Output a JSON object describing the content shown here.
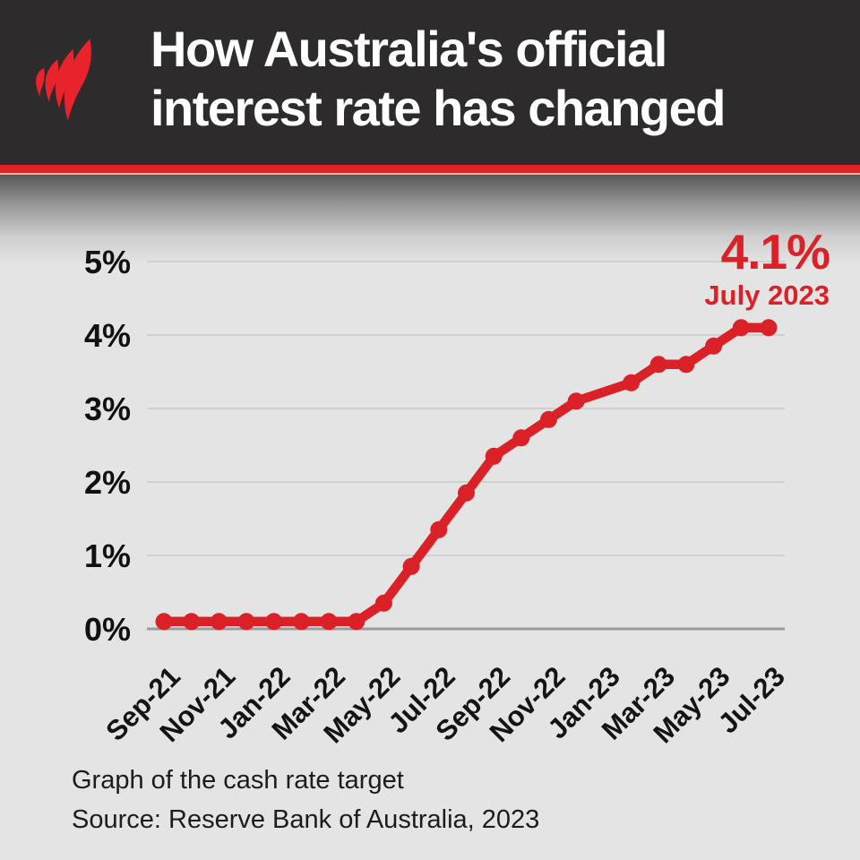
{
  "header": {
    "title_line1": "How Australia's official",
    "title_line2": "interest rate has changed",
    "logo": "sbs-flame-logo"
  },
  "annotation": {
    "value": "4.1%",
    "date": "July 2023"
  },
  "footer": {
    "line1": "Graph of the cash rate target",
    "line2": "Source: Reserve Bank of Australia, 2023"
  },
  "colors": {
    "brand_red": "#DB2128",
    "stripe_red": "#E02128",
    "header_bg": "#2D2B2C",
    "chart_bg": "#E5E4E4",
    "grid_line": "#D0D0D0",
    "axis_line": "#9B9B9B",
    "text_dark": "#111111"
  },
  "chart_data": {
    "type": "line",
    "series_name": "Cash rate target (%)",
    "x": [
      "Sep-21",
      "Oct-21",
      "Nov-21",
      "Dec-21",
      "Jan-22",
      "Feb-22",
      "Mar-22",
      "Apr-22",
      "May-22",
      "Jun-22",
      "Jul-22",
      "Aug-22",
      "Sep-22",
      "Oct-22",
      "Nov-22",
      "Dec-22",
      "Jan-23",
      "Feb-23",
      "Mar-23",
      "Apr-23",
      "May-23",
      "Jun-23",
      "Jul-23"
    ],
    "values": [
      0.1,
      0.1,
      0.1,
      0.1,
      0.1,
      0.1,
      0.1,
      0.1,
      0.35,
      0.85,
      1.35,
      1.85,
      2.35,
      2.6,
      2.85,
      3.1,
      null,
      3.35,
      3.6,
      3.6,
      3.85,
      4.1,
      4.1
    ],
    "missing_markers": [
      "Jan-23"
    ],
    "x_tick_labels": [
      "Sep-21",
      "Nov-21",
      "Jan-22",
      "Mar-22",
      "May-22",
      "Jul-22",
      "Sep-22",
      "Nov-22",
      "Jan-23",
      "Mar-23",
      "May-23",
      "Jul-23"
    ],
    "y_ticks": [
      "0%",
      "1%",
      "2%",
      "3%",
      "4%",
      "5%"
    ],
    "ylim": [
      0,
      5
    ],
    "grid": "horizontal",
    "legend": "none",
    "last_point_label": {
      "value": "4.1%",
      "date": "July 2023"
    }
  }
}
